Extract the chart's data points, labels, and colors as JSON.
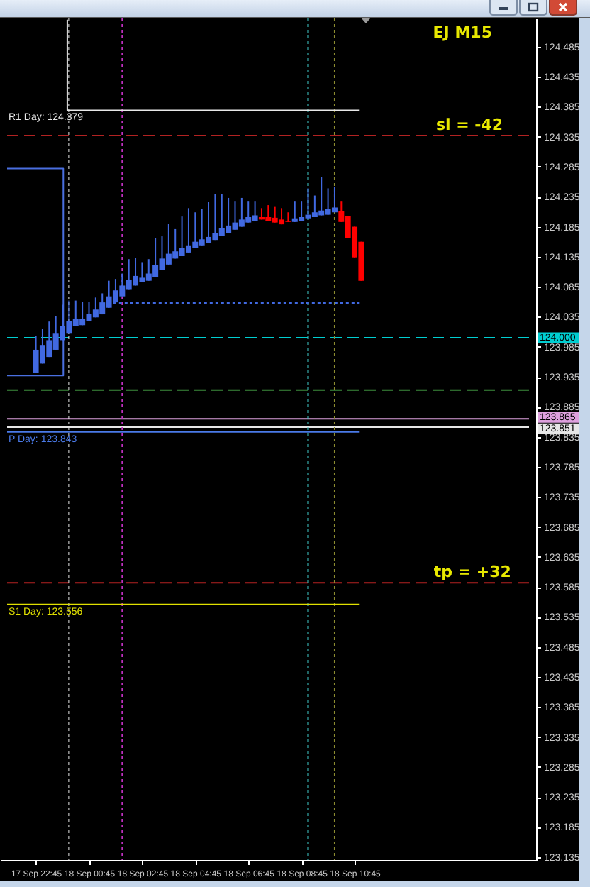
{
  "chart_data": {
    "type": "candlestick",
    "title": "EJ M15",
    "x": [
      "--09-17T22:45",
      "--09-17T23:00",
      "--09-17T23:15",
      "--09-17T23:30",
      "--09-17T23:45",
      "--09-18T00:00",
      "--09-18T00:15",
      "--09-18T00:30",
      "--09-18T00:45",
      "--09-18T01:00",
      "--09-18T01:15",
      "--09-18T01:30",
      "--09-18T01:45",
      "--09-18T02:00",
      "--09-18T02:15",
      "--09-18T02:30",
      "--09-18T02:45",
      "--09-18T03:00",
      "--09-18T03:15",
      "--09-18T03:30",
      "--09-18T03:45",
      "--09-18T04:00",
      "--09-18T04:15",
      "--09-18T04:30",
      "--09-18T04:45",
      "--09-18T05:00",
      "--09-18T05:15",
      "--09-18T05:30",
      "--09-18T05:45",
      "--09-18T06:00",
      "--09-18T06:15",
      "--09-18T06:30",
      "--09-18T06:45",
      "--09-18T07:00",
      "--09-18T07:15",
      "--09-18T07:30",
      "--09-18T07:45",
      "--09-18T08:00",
      "--09-18T08:15",
      "--09-18T08:30",
      "--09-18T08:45",
      "--09-18T09:00",
      "--09-18T09:15",
      "--09-18T09:30",
      "--09-18T09:45",
      "--09-18T10:00",
      "--09-18T10:15",
      "--09-18T10:30",
      "--09-18T10:45",
      "--09-18T11:00"
    ],
    "ohlc": [
      [
        123.941,
        124.003,
        123.941,
        123.98
      ],
      [
        123.957,
        124.015,
        123.957,
        123.988
      ],
      [
        123.968,
        124.027,
        123.968,
        123.996
      ],
      [
        123.98,
        124.036,
        123.98,
        124.008
      ],
      [
        123.996,
        124.055,
        123.996,
        124.02
      ],
      [
        124.008,
        124.062,
        124.008,
        124.028
      ],
      [
        124.02,
        124.062,
        124.02,
        124.032
      ],
      [
        124.021,
        124.06,
        124.021,
        124.032
      ],
      [
        124.028,
        124.06,
        124.028,
        124.039
      ],
      [
        124.034,
        124.067,
        124.034,
        124.047
      ],
      [
        124.039,
        124.074,
        124.039,
        124.059
      ],
      [
        124.05,
        124.095,
        124.05,
        124.069
      ],
      [
        124.059,
        124.098,
        124.059,
        124.079
      ],
      [
        124.069,
        124.107,
        124.069,
        124.087
      ],
      [
        124.081,
        124.131,
        124.081,
        124.096
      ],
      [
        124.087,
        124.133,
        124.087,
        124.103
      ],
      [
        124.093,
        124.126,
        124.093,
        124.1
      ],
      [
        124.095,
        124.131,
        124.095,
        124.107
      ],
      [
        124.101,
        124.166,
        124.101,
        124.121
      ],
      [
        124.113,
        124.169,
        124.113,
        124.132
      ],
      [
        124.122,
        124.19,
        124.122,
        124.14
      ],
      [
        124.132,
        124.181,
        124.132,
        124.144
      ],
      [
        124.136,
        124.202,
        124.136,
        124.149
      ],
      [
        124.142,
        124.216,
        124.142,
        124.154
      ],
      [
        124.149,
        124.209,
        124.149,
        124.16
      ],
      [
        124.154,
        124.214,
        124.154,
        124.164
      ],
      [
        124.158,
        124.226,
        124.158,
        124.168
      ],
      [
        124.163,
        124.24,
        124.163,
        124.175
      ],
      [
        124.17,
        124.24,
        124.17,
        124.183
      ],
      [
        124.175,
        124.233,
        124.175,
        124.187
      ],
      [
        124.18,
        124.228,
        124.18,
        124.192
      ],
      [
        124.185,
        124.233,
        124.185,
        124.197
      ],
      [
        124.192,
        124.228,
        124.192,
        124.201
      ],
      [
        124.195,
        124.228,
        124.195,
        124.204
      ],
      [
        124.201,
        124.216,
        124.197,
        124.197
      ],
      [
        124.201,
        124.221,
        124.195,
        124.195
      ],
      [
        124.2,
        124.218,
        124.192,
        124.192
      ],
      [
        124.197,
        124.216,
        124.189,
        124.189
      ],
      [
        124.195,
        124.209,
        124.193,
        124.193
      ],
      [
        124.193,
        124.228,
        124.193,
        124.199
      ],
      [
        124.195,
        124.228,
        124.195,
        124.201
      ],
      [
        124.199,
        124.249,
        124.199,
        124.205
      ],
      [
        124.201,
        124.237,
        124.201,
        124.209
      ],
      [
        124.204,
        124.268,
        124.204,
        124.212
      ],
      [
        124.205,
        124.249,
        124.205,
        124.215
      ],
      [
        124.209,
        124.251,
        124.209,
        124.217
      ],
      [
        124.211,
        124.228,
        124.193,
        124.193
      ],
      [
        124.203,
        124.203,
        124.166,
        124.166
      ],
      [
        124.185,
        124.185,
        124.134,
        124.134
      ],
      [
        124.16,
        124.16,
        124.095,
        124.095
      ]
    ],
    "colors": [
      "#4169e1",
      "#4169e1",
      "#4169e1",
      "#4169e1",
      "#4169e1",
      "#4169e1",
      "#4169e1",
      "#4169e1",
      "#4169e1",
      "#4169e1",
      "#4169e1",
      "#4169e1",
      "#4169e1",
      "#4169e1",
      "#4169e1",
      "#4169e1",
      "#4169e1",
      "#4169e1",
      "#4169e1",
      "#4169e1",
      "#4169e1",
      "#4169e1",
      "#4169e1",
      "#4169e1",
      "#4169e1",
      "#4169e1",
      "#4169e1",
      "#4169e1",
      "#4169e1",
      "#4169e1",
      "#4169e1",
      "#4169e1",
      "#4169e1",
      "#4169e1",
      "#ff0000",
      "#ff0000",
      "#ff0000",
      "#ff0000",
      "#ff0000",
      "#4169e1",
      "#4169e1",
      "#4169e1",
      "#4169e1",
      "#4169e1",
      "#4169e1",
      "#4169e1",
      "#ff0000",
      "#ff0000",
      "#ff0000",
      "#ff0000"
    ],
    "series": [
      {
        "type": "line",
        "name": "R1 Day: 124.379",
        "color": "#e8e8e8",
        "x": [
          "--09-17T23:56",
          "--09-17T23:56",
          "--09-18T10:55"
        ],
        "values": [
          124.53,
          124.379,
          124.379
        ]
      },
      {
        "type": "line",
        "name": "P Day: 123.843",
        "color": "#4a7ae8",
        "x": [
          "--09-17T21:40",
          "--09-18T10:55"
        ],
        "values": [
          123.843,
          123.843
        ]
      },
      {
        "type": "line",
        "name": "S1 Day: 123.556",
        "color": "#e0e000",
        "x": [
          "--09-17T21:40",
          "--09-18T10:55"
        ],
        "values": [
          123.556,
          123.556
        ]
      },
      {
        "type": "line",
        "color": "#4169e1",
        "line_style": "dotted",
        "x": [
          "--09-18T01:40",
          "--09-18T10:55"
        ],
        "values": [
          124.058,
          124.058
        ]
      },
      {
        "type": "line",
        "color": "#4a6fe0",
        "x": [
          "--09-17T21:40",
          "--09-17T23:47",
          "--09-17T23:47",
          "--09-17T21:40"
        ],
        "values": [
          124.282,
          124.282,
          123.937,
          123.937
        ]
      }
    ],
    "xlim": [
      "--09-17T21:40",
      "--09-18T17:19"
    ],
    "ylim": [
      123.13,
      124.532
    ],
    "xticks": [
      {
        "value": "--09-17T22:45",
        "label": "17 Sep 22:45"
      },
      {
        "value": "--09-18T00:45",
        "label": "18 Sep 00:45"
      },
      {
        "value": "--09-18T02:45",
        "label": "18 Sep 02:45"
      },
      {
        "value": "--09-18T04:45",
        "label": "18 Sep 04:45"
      },
      {
        "value": "--09-18T06:45",
        "label": "18 Sep 06:45"
      },
      {
        "value": "--09-18T08:45",
        "label": "18 Sep 08:45"
      },
      {
        "value": "--09-18T10:45",
        "label": "18 Sep 10:45"
      }
    ],
    "yticks": [
      124.485,
      124.435,
      124.385,
      124.335,
      124.285,
      124.235,
      124.185,
      124.135,
      124.085,
      124.035,
      123.985,
      123.935,
      123.885,
      123.835,
      123.785,
      123.735,
      123.685,
      123.635,
      123.585,
      123.535,
      123.485,
      123.435,
      123.385,
      123.335,
      123.285,
      123.235,
      123.185,
      123.135
    ],
    "ref_lines": [
      {
        "axis": "y",
        "value": 124.337,
        "color": "#b22222",
        "line_style": "dashed"
      },
      {
        "axis": "y",
        "value": 124,
        "label": "124.000",
        "color": "#00ced1",
        "line_style": "dashed"
      },
      {
        "axis": "y",
        "value": 123.913,
        "color": "#3c8c3c",
        "line_style": "dashed"
      },
      {
        "axis": "y",
        "value": 123.865,
        "label": "123.865",
        "color": "#dda0dd"
      },
      {
        "axis": "y",
        "value": 123.851,
        "label": "123.851",
        "color": "#e6e6e6"
      },
      {
        "axis": "y",
        "value": 123.592,
        "color": "#b22222",
        "line_style": "dashed"
      },
      {
        "axis": "x",
        "value": "--09-18T00:00",
        "color": "#e6e6e6",
        "line_style": "dotted"
      },
      {
        "axis": "x",
        "value": "--09-18T02:00",
        "color": "#c030c0",
        "line_style": "dotted"
      },
      {
        "axis": "x",
        "value": "--09-18T09:00",
        "color": "#40c8c8",
        "line_style": "dotted"
      },
      {
        "axis": "x",
        "value": "--09-18T10:00",
        "color": "#8c8c30",
        "line_style": "dotted"
      }
    ],
    "annotations": [
      {
        "text": "sl = -42",
        "x": "--09-18T13:49",
        "y": 124.337
      },
      {
        "text": "tp = +32",
        "x": "--09-18T13:44",
        "y": 123.592
      }
    ]
  }
}
